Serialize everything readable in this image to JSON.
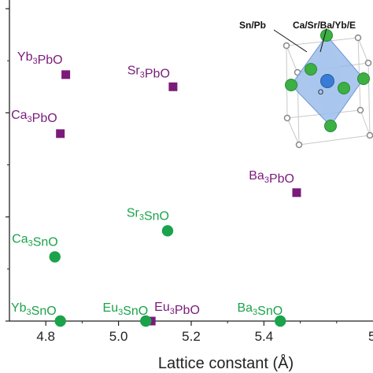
{
  "chart_data": {
    "type": "scatter",
    "xlabel": "Lattice constant (Å)",
    "ylabel": "",
    "xlim": [
      4.7,
      5.7
    ],
    "ylim": [
      0,
      1.85
    ],
    "x_ticks": [
      4.8,
      5.0,
      5.2,
      5.4
    ],
    "x_tick_labels": [
      "4.8",
      "5.0",
      "5.2",
      "5.4"
    ],
    "edge_tick_label": "5",
    "y_ticks": [
      0.0,
      0.6,
      1.2,
      1.8
    ],
    "y_minor_ticks": [
      0.3,
      0.9,
      1.5
    ],
    "y_tick_labels": [
      "",
      "",
      "",
      ""
    ],
    "colors": {
      "pbo": "#7a1b7a",
      "sno": "#1aa34a"
    },
    "series": [
      {
        "marker": "square",
        "color": "#7a1b7a",
        "points": [
          {
            "label": "Yb3PbO",
            "x": 4.855,
            "y": 1.42
          },
          {
            "label": "Ca3PbO",
            "x": 4.84,
            "y": 1.08
          },
          {
            "label": "Sr3PbO",
            "x": 5.15,
            "y": 1.35
          },
          {
            "label": "Ba3PbO",
            "x": 5.49,
            "y": 0.74
          },
          {
            "label": "Eu3PbO",
            "x": 5.09,
            "y": 0.0
          }
        ]
      },
      {
        "marker": "circle",
        "color": "#1aa34a",
        "points": [
          {
            "label": "Ca3SnO",
            "x": 4.825,
            "y": 0.37
          },
          {
            "label": "Sr3SnO",
            "x": 5.135,
            "y": 0.52
          },
          {
            "label": "Yb3SnO",
            "x": 4.84,
            "y": 0.0
          },
          {
            "label": "Eu3SnO",
            "x": 5.075,
            "y": 0.0
          },
          {
            "label": "Ba3SnO",
            "x": 5.445,
            "y": 0.0
          }
        ]
      }
    ],
    "annotations": [
      {
        "text": "Yb3PbO",
        "series": 0,
        "point": 0
      },
      {
        "text": "Ca3PbO",
        "series": 0,
        "point": 1
      },
      {
        "text": "Sr3PbO",
        "series": 0,
        "point": 2
      },
      {
        "text": "Ba3PbO",
        "series": 0,
        "point": 3
      },
      {
        "text": "Eu3PbO",
        "series": 0,
        "point": 4
      },
      {
        "text": "Ca3SnO",
        "series": 1,
        "point": 0
      },
      {
        "text": "Sr3SnO",
        "series": 1,
        "point": 1
      },
      {
        "text": "Yb3SnO",
        "series": 1,
        "point": 2
      },
      {
        "text": "Eu3SnO",
        "series": 1,
        "point": 3
      },
      {
        "text": "Ba3SnO",
        "series": 1,
        "point": 4
      }
    ],
    "inset": {
      "labels": {
        "bsite": "Sn/Pb",
        "asite": "Ca/Sr/Ba/Yb/E",
        "center": "O"
      },
      "colors": {
        "a_atom": "#3cb043",
        "b_atom": "#888888",
        "o_atom": "#3a7bd5",
        "octahedron": "#8fb4e8"
      }
    }
  }
}
